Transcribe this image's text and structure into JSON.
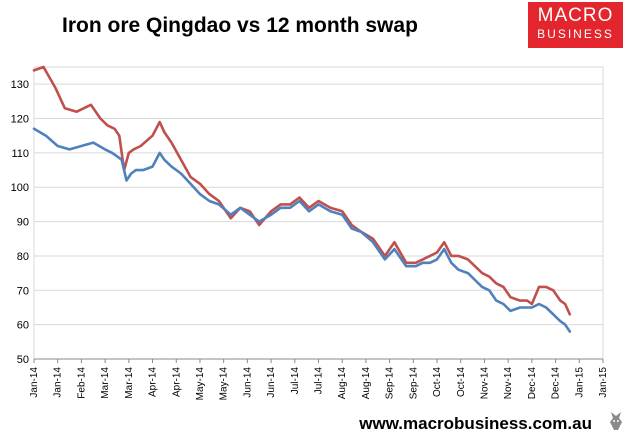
{
  "chart_data": {
    "type": "line",
    "title": "Iron ore Qingdao vs 12 month swap",
    "xlabel": "",
    "ylabel": "",
    "ylim": [
      50,
      135
    ],
    "yticks": [
      50,
      60,
      70,
      80,
      90,
      100,
      110,
      120,
      130
    ],
    "xlim": [
      0,
      24
    ],
    "categories": [
      "Jan-14",
      "Jan-14",
      "Feb-14",
      "Mar-14",
      "Mar-14",
      "Apr-14",
      "Apr-14",
      "May-14",
      "May-14",
      "Jun-14",
      "Jun-14",
      "Jul-14",
      "Jul-14",
      "Aug-14",
      "Aug-14",
      "Sep-14",
      "Sep-14",
      "Oct-14",
      "Oct-14",
      "Nov-14",
      "Nov-14",
      "Dec-14",
      "Dec-14",
      "Jan-15",
      "Jan-15"
    ],
    "grid": true,
    "series": [
      {
        "name": "12 month swap",
        "color": "#c0504d",
        "x": [
          0,
          0.4,
          0.9,
          1.3,
          1.8,
          2.4,
          2.8,
          3.1,
          3.4,
          3.6,
          3.8,
          4.0,
          4.2,
          4.5,
          5.0,
          5.3,
          5.5,
          5.8,
          6.2,
          6.6,
          7.0,
          7.4,
          7.8,
          8.3,
          8.7,
          9.1,
          9.5,
          10.0,
          10.4,
          10.8,
          11.2,
          11.6,
          12.0,
          12.5,
          13.0,
          13.4,
          13.8,
          14.3,
          14.8,
          15.2,
          15.7,
          16.1,
          16.4,
          16.7,
          17.0,
          17.3,
          17.6,
          17.9,
          18.3,
          18.6,
          18.9,
          19.2,
          19.5,
          19.8,
          20.1,
          20.5,
          20.8,
          21.0,
          21.3,
          21.6,
          21.9,
          22.2,
          22.4,
          22.6
        ],
        "values": [
          134,
          135,
          129,
          123,
          122,
          124,
          120,
          118,
          117,
          115,
          105,
          110,
          111,
          112,
          115,
          119,
          116,
          113,
          108,
          103,
          101,
          98,
          96,
          91,
          94,
          93,
          89,
          93,
          95,
          95,
          97,
          94,
          96,
          94,
          93,
          89,
          87,
          85,
          80,
          84,
          78,
          78,
          79,
          80,
          81,
          84,
          80,
          80,
          79,
          77,
          75,
          74,
          72,
          71,
          68,
          67,
          67,
          66,
          71,
          71,
          70,
          67,
          66,
          63
        ]
      },
      {
        "name": "Iron ore Qingdao",
        "color": "#4f81bd",
        "x": [
          0,
          0.5,
          1.0,
          1.5,
          2.0,
          2.5,
          3.0,
          3.3,
          3.5,
          3.7,
          3.9,
          4.1,
          4.3,
          4.6,
          5.0,
          5.3,
          5.5,
          5.8,
          6.2,
          6.6,
          7.0,
          7.4,
          7.8,
          8.3,
          8.7,
          9.1,
          9.5,
          10.0,
          10.4,
          10.8,
          11.2,
          11.6,
          12.0,
          12.5,
          13.0,
          13.4,
          13.8,
          14.3,
          14.8,
          15.2,
          15.7,
          16.1,
          16.4,
          16.7,
          17.0,
          17.3,
          17.6,
          17.9,
          18.3,
          18.6,
          18.9,
          19.2,
          19.5,
          19.8,
          20.1,
          20.5,
          20.8,
          21.0,
          21.3,
          21.6,
          21.9,
          22.2,
          22.4,
          22.6
        ],
        "values": [
          117,
          115,
          112,
          111,
          112,
          113,
          111,
          110,
          109,
          108,
          102,
          104,
          105,
          105,
          106,
          110,
          108,
          106,
          104,
          101,
          98,
          96,
          95,
          92,
          94,
          92,
          90,
          92,
          94,
          94,
          96,
          93,
          95,
          93,
          92,
          88,
          87,
          84,
          79,
          82,
          77,
          77,
          78,
          78,
          79,
          82,
          78,
          76,
          75,
          73,
          71,
          70,
          67,
          66,
          64,
          65,
          65,
          65,
          66,
          65,
          63,
          61,
          60,
          58
        ]
      }
    ]
  },
  "footer": {
    "website": "www.macrobusiness.com.au"
  },
  "logo": {
    "line1": "MACRO",
    "line2": "BUSINESS"
  }
}
